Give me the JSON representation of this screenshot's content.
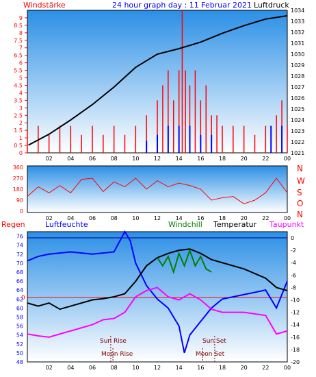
{
  "header": {
    "left_label": "Windstärke",
    "title": "24 hour graph day : 11 Februar 2021",
    "right_label": "Luftdruck"
  },
  "colors": {
    "wind": "#ff0000",
    "gust": "#0000ff",
    "pressure": "#000000",
    "temperature": "#000000",
    "humidity": "#0000ff",
    "dewpoint": "#ff00ff",
    "windchill": "#008000",
    "rain": "#ff0000",
    "sun": "#800000",
    "panel_top": "#2b8fe6",
    "panel_bottom": "#ffffff"
  },
  "x_ticks": [
    "02",
    "04",
    "06",
    "08",
    "10",
    "12",
    "14",
    "16",
    "18",
    "20",
    "22",
    "00"
  ],
  "chart_data": [
    {
      "id": "wind-pressure",
      "type": "bar",
      "title": "24 hour graph day : 11 Februar 2021",
      "ylabel_left": "Windstärke",
      "ylabel_right": "Luftdruck",
      "ylim_left": [
        0,
        9.5
      ],
      "ylim_right": [
        1021,
        1034
      ],
      "left_ticks": [
        "0",
        "0.5",
        "1",
        "1.5",
        "2",
        "2.5",
        "3",
        "3.5",
        "4",
        "4.5",
        "5",
        "5.5",
        "6",
        "6.5",
        "7",
        "7.5",
        "8",
        "8.5",
        "9"
      ],
      "right_ticks": [
        "1021",
        "1022",
        "1023",
        "1024",
        "1025",
        "1026",
        "1027",
        "1028",
        "1029",
        "1030",
        "1031",
        "1032",
        "1033",
        "1034"
      ],
      "series": [
        {
          "key": "pressure",
          "axis": "right",
          "x": [
            0.1,
            2,
            4,
            6,
            8,
            10,
            12,
            14,
            16,
            18,
            20,
            22,
            24
          ],
          "y": [
            1021.7,
            1022.7,
            1024.0,
            1025.4,
            1027.0,
            1028.8,
            1030.0,
            1030.5,
            1031.1,
            1031.9,
            1032.6,
            1033.2,
            1033.5
          ]
        },
        {
          "key": "wind",
          "axis": "left",
          "x": [
            0,
            1,
            2,
            3,
            4,
            5,
            6,
            7,
            8,
            9,
            10,
            11,
            12,
            12.5,
            13,
            13.5,
            14,
            14.3,
            14.6,
            15,
            15.5,
            16,
            16.5,
            17,
            17.5,
            18,
            19,
            20,
            21,
            22,
            22.5,
            23,
            23.5,
            24
          ],
          "y": [
            1.5,
            1.8,
            1.2,
            1.8,
            1.8,
            1.2,
            1.8,
            1.2,
            1.8,
            1.2,
            1.8,
            2.5,
            3.5,
            4.5,
            5.5,
            3.5,
            5.5,
            9.5,
            5.5,
            4.5,
            5.5,
            3.5,
            4.5,
            2.5,
            2.5,
            1.8,
            1.8,
            1.8,
            1.2,
            1.8,
            1.2,
            2.5,
            3.5,
            1.8
          ]
        },
        {
          "key": "gust",
          "axis": "left",
          "x": [
            11,
            12,
            13,
            14,
            15,
            16,
            17,
            22.5,
            23.5
          ],
          "y": [
            0.8,
            1.2,
            1.8,
            1.8,
            1.8,
            1.2,
            1.2,
            1.8,
            1.8
          ]
        }
      ]
    },
    {
      "id": "wind-direction",
      "type": "line",
      "ylabel_right": [
        "N",
        "W",
        "S",
        "O",
        "N"
      ],
      "ylim": [
        0,
        360
      ],
      "left_ticks": [
        "0",
        "90",
        "180",
        "270",
        "360"
      ],
      "series": [
        {
          "key": "direction",
          "x": [
            0,
            1,
            2,
            3,
            4,
            5,
            6,
            7,
            8,
            9,
            10,
            11,
            12,
            13,
            14,
            15,
            16,
            17,
            18,
            19,
            20,
            21,
            22,
            23,
            24
          ],
          "y": [
            120,
            200,
            150,
            210,
            150,
            260,
            270,
            160,
            240,
            200,
            270,
            180,
            250,
            200,
            230,
            210,
            180,
            90,
            110,
            120,
            60,
            90,
            150,
            270,
            150
          ]
        }
      ]
    },
    {
      "id": "temp-humidity",
      "type": "line",
      "legend": [
        "Regen",
        "Luftfeuchte",
        "Windchill",
        "Temperatur",
        "Taupunkt"
      ],
      "ylim_left": [
        48,
        77
      ],
      "ylim_right": [
        -20,
        1
      ],
      "left_ticks": [
        "48",
        "50",
        "52",
        "54",
        "56",
        "58",
        "60",
        "62",
        "64",
        "66",
        "68",
        "70",
        "72",
        "74",
        "76"
      ],
      "right_ticks": [
        "-20",
        "-18",
        "-16",
        "-14",
        "-12",
        "-10",
        "-8",
        "-6",
        "-4",
        "-2",
        "0"
      ],
      "zero_label": "0",
      "series": [
        {
          "key": "humidity",
          "name": "Luftfeuchte",
          "axis": "left",
          "x": [
            0,
            1,
            2,
            4,
            6,
            8,
            9,
            9.5,
            10,
            11,
            12,
            13,
            14,
            14.5,
            15,
            16,
            17,
            18,
            20,
            22,
            23,
            24
          ],
          "y": [
            70.5,
            71.5,
            72,
            72.5,
            72,
            72.5,
            77,
            75,
            70,
            65,
            62,
            60,
            56,
            50,
            54,
            57,
            60,
            62,
            63,
            64,
            60,
            66
          ]
        },
        {
          "key": "temperature",
          "name": "Temperatur",
          "axis": "right",
          "x": [
            0,
            1,
            2,
            3,
            4,
            6,
            7,
            8,
            9,
            10,
            11,
            12,
            13,
            14,
            15,
            16,
            17,
            18,
            20,
            22,
            23,
            24
          ],
          "y": [
            -10.5,
            -11,
            -10.5,
            -11.5,
            -11,
            -10,
            -9.8,
            -9.5,
            -9,
            -7,
            -4.5,
            -3.2,
            -2.5,
            -2.0,
            -1.8,
            -2.5,
            -3.5,
            -4.0,
            -5.0,
            -6.5,
            -8.0,
            -8.5
          ]
        },
        {
          "key": "dewpoint",
          "name": "Taupunkt",
          "axis": "right",
          "x": [
            0,
            1,
            2,
            4,
            6,
            7,
            8,
            9,
            10,
            11,
            12,
            13,
            14,
            15,
            16,
            17,
            18,
            20,
            22,
            23,
            24
          ],
          "y": [
            -15.5,
            -15.8,
            -16,
            -15,
            -14,
            -13.2,
            -13,
            -12,
            -9.5,
            -8.5,
            -8.0,
            -9.5,
            -10.0,
            -9.0,
            -10.0,
            -11.5,
            -12.0,
            -12.0,
            -12.5,
            -15.5,
            -15.0
          ]
        },
        {
          "key": "windchill",
          "name": "Windchill",
          "axis": "right",
          "x": [
            12,
            12.5,
            13,
            13.5,
            14,
            14.5,
            15,
            15.5,
            16,
            16.5,
            17
          ],
          "y": [
            -3.2,
            -4.5,
            -3.0,
            -5.5,
            -2.5,
            -4.5,
            -2.0,
            -4.5,
            -3.0,
            -5.0,
            -5.5
          ]
        }
      ]
    }
  ],
  "astro": {
    "sun_rise": "Sun Rise",
    "sun_set": "Sun Set",
    "moon_rise": "Moon Rise",
    "moon_set": "Moon Set",
    "sun_rise_time": 7.7,
    "sun_set_time": 17.3,
    "moon_rise_time": 7.9,
    "moon_set_time": 16.2
  }
}
